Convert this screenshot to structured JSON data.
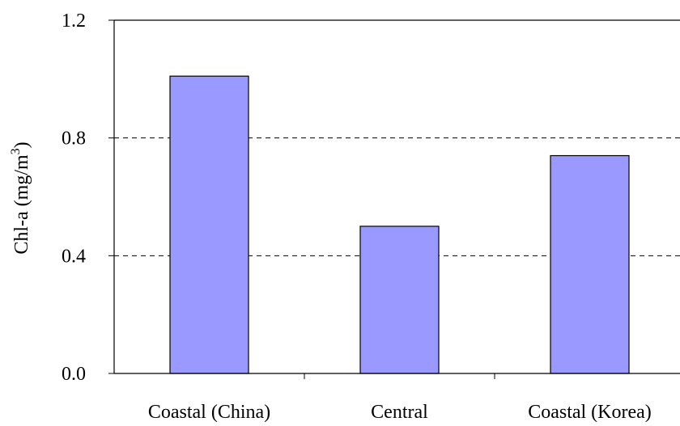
{
  "chart_data": {
    "type": "bar",
    "categories": [
      "Coastal (China)",
      "Central",
      "Coastal (Korea)"
    ],
    "values": [
      1.01,
      0.5,
      0.74
    ],
    "ylabel": {
      "main": "Chl-a (mg/m",
      "superscript": "3",
      "close": ")"
    },
    "ylim": [
      0,
      1.2
    ],
    "yticks": [
      "0.0",
      "0.4",
      "0.8",
      "1.2"
    ],
    "ytick_values": [
      0,
      0.4,
      0.8,
      1.2
    ],
    "grid": "horizontal dashed",
    "bar_color": "#9999ff",
    "bar_edge_color": "#000000"
  }
}
